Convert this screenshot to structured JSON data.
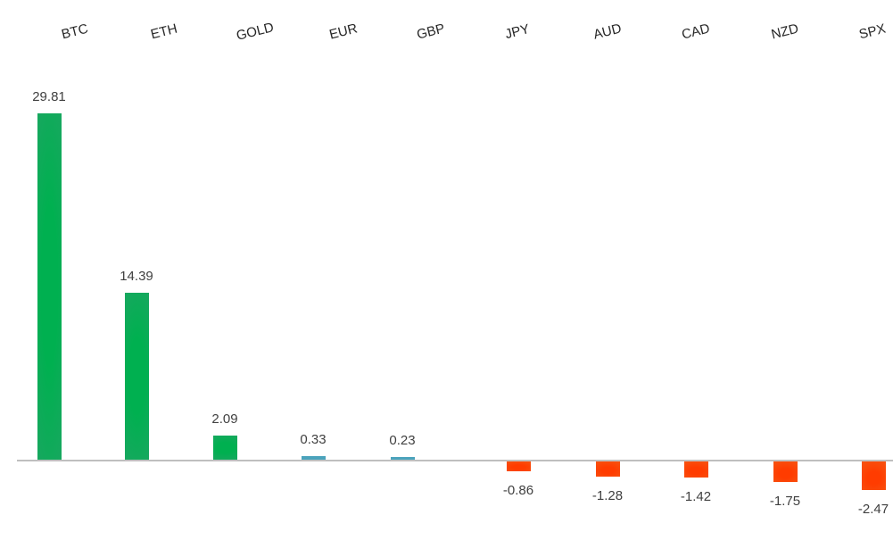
{
  "chart_data": {
    "type": "bar",
    "categories": [
      "BTC",
      "ETH",
      "GOLD",
      "EUR",
      "GBP",
      "JPY",
      "AUD",
      "CAD",
      "NZD",
      "SPX"
    ],
    "values": [
      29.81,
      14.39,
      2.09,
      0.33,
      0.23,
      -0.86,
      -1.28,
      -1.42,
      -1.75,
      -2.47
    ],
    "value_labels": [
      "29.81",
      "14.39",
      "2.09",
      "0.33",
      "0.23",
      "-0.86",
      "-1.28",
      "-1.42",
      "-1.75",
      "-2.47"
    ],
    "bar_color_keys": [
      "green",
      "green",
      "green",
      "blue",
      "blue",
      "orange",
      "orange",
      "orange",
      "orange",
      "orange"
    ],
    "title": "",
    "xlabel": "",
    "ylabel": "",
    "ylim": [
      -3,
      31
    ],
    "grid": false,
    "legend": "none",
    "category_label_position": "top",
    "category_label_rotation_deg": -14,
    "value_label_position": "outside-end",
    "colors": {
      "positive_large_center": "#00b050",
      "positive_large_edge": "#2ba06c",
      "positive_small": "#4ba3bc",
      "negative_center": "#ff3c00",
      "negative_edge": "#f0661e",
      "axis_line": "#bfbfbf",
      "value_label_text": "#404040",
      "category_label_text": "#262626",
      "background": "#ffffff"
    }
  }
}
